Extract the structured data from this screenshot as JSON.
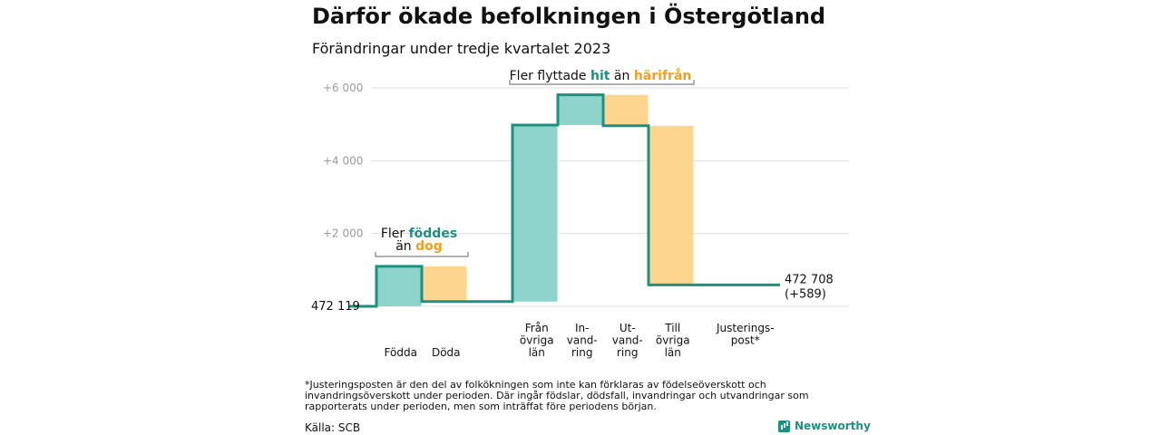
{
  "title": "Därför ökade befolkningen i Östergötland",
  "subtitle": "Förändringar under tredje kvartalet 2023",
  "footnote": "*Justeringsposten är den del av folkökningen som inte kan förklaras av födelseöverskott och invandringsöverskott under perioden. Där ingår födslar, dödsfall, invandringar och utvandringar som rapporterats under perioden, men som inträffat före periodens början.",
  "source": "Källa: SCB",
  "brand": "Newsworthy",
  "chart_data": {
    "type": "waterfall",
    "base_label": "472  119",
    "end_label_line1": "472 708",
    "end_label_line2": "(+589)",
    "ylim": [
      0,
      6000
    ],
    "yticks": [
      {
        "value": 2000,
        "label": "+2  000"
      },
      {
        "value": 4000,
        "label": "+4  000"
      },
      {
        "value": 6000,
        "label": "+6  000"
      }
    ],
    "steps": [
      {
        "label": [
          "Födda"
        ],
        "start": 0,
        "end": 1100,
        "color": "#8dd5cc"
      },
      {
        "label": [
          "Döda"
        ],
        "start": 1100,
        "end": 130,
        "color": "#fcd58e"
      },
      {
        "label": [
          "Från",
          "övriga",
          "län"
        ],
        "start": 130,
        "end": 4980,
        "color": "#8dd5cc"
      },
      {
        "label": [
          "In-",
          "vand-",
          "ring"
        ],
        "start": 4980,
        "end": 5810,
        "color": "#8dd5cc"
      },
      {
        "label": [
          "Ut-",
          "vand-",
          "ring"
        ],
        "start": 5810,
        "end": 4960,
        "color": "#fcd58e"
      },
      {
        "label": [
          "Till",
          "övriga",
          "län"
        ],
        "start": 4960,
        "end": 589,
        "color": "#fcd58e"
      },
      {
        "label": [
          "Justerings-",
          "post*"
        ],
        "start": 589,
        "end": 589,
        "color": "#8dd5cc"
      }
    ],
    "annotations": [
      {
        "line1": "Fler",
        "pos_word": "föddes",
        "mid": "än",
        "neg_word": "dog"
      },
      {
        "line1": "Fler flyttade",
        "pos_word": "hit",
        "mid": "än",
        "neg_word": "härifrån"
      }
    ],
    "colors": {
      "positive": "#8dd5cc",
      "negative": "#fcd58e",
      "line": "#1f8f82",
      "pos_text": "#1f8f82",
      "neg_text": "#f0a020"
    }
  }
}
